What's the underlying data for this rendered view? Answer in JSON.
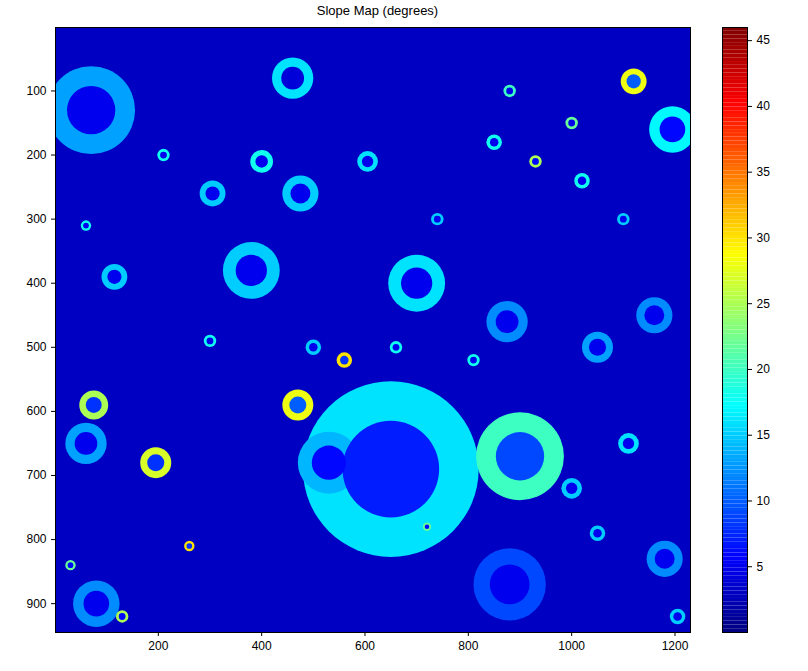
{
  "chart_data": {
    "type": "heatmap",
    "title": "Slope Map (degrees)",
    "xlim": [
      1,
      1230
    ],
    "ylim": [
      1,
      945
    ],
    "xticks": [
      200,
      400,
      600,
      800,
      1000,
      1200
    ],
    "yticks": [
      100,
      200,
      300,
      400,
      500,
      600,
      700,
      800,
      900
    ],
    "colorbar": {
      "range": [
        0,
        46
      ],
      "ticks": [
        5,
        10,
        15,
        20,
        25,
        30,
        35,
        40,
        45
      ]
    },
    "background": 3,
    "craters": [
      {
        "x": 650,
        "y": 690,
        "r": 170,
        "rim": 16,
        "floor": 7
      },
      {
        "x": 530,
        "y": 680,
        "r": 60,
        "rim": 14,
        "floor": 6
      },
      {
        "x": 900,
        "y": 670,
        "r": 85,
        "rim": 20,
        "floor": 9
      },
      {
        "x": 880,
        "y": 870,
        "r": 70,
        "rim": 9,
        "floor": 5
      },
      {
        "x": 70,
        "y": 130,
        "r": 85,
        "rim": 13,
        "floor": 5
      },
      {
        "x": 1195,
        "y": 160,
        "r": 45,
        "rim": 17,
        "floor": 6
      },
      {
        "x": 460,
        "y": 80,
        "r": 40,
        "rim": 16,
        "floor": 4
      },
      {
        "x": 380,
        "y": 380,
        "r": 55,
        "rim": 15,
        "floor": 5
      },
      {
        "x": 700,
        "y": 400,
        "r": 55,
        "rim": 16,
        "floor": 5
      },
      {
        "x": 475,
        "y": 260,
        "r": 35,
        "rim": 15,
        "floor": 5
      },
      {
        "x": 875,
        "y": 460,
        "r": 40,
        "rim": 12,
        "floor": 5
      },
      {
        "x": 60,
        "y": 650,
        "r": 40,
        "rim": 13,
        "floor": 5
      },
      {
        "x": 80,
        "y": 900,
        "r": 45,
        "rim": 12,
        "floor": 5
      },
      {
        "x": 1160,
        "y": 450,
        "r": 35,
        "rim": 12,
        "floor": 5
      },
      {
        "x": 1180,
        "y": 830,
        "r": 35,
        "rim": 12,
        "floor": 5
      },
      {
        "x": 470,
        "y": 590,
        "r": 30,
        "rim": 28,
        "floor": 10
      },
      {
        "x": 195,
        "y": 680,
        "r": 30,
        "rim": 27,
        "floor": 8
      },
      {
        "x": 75,
        "y": 590,
        "r": 28,
        "rim": 25,
        "floor": 8
      },
      {
        "x": 1120,
        "y": 85,
        "r": 25,
        "rim": 28,
        "floor": 10
      },
      {
        "x": 400,
        "y": 210,
        "r": 22,
        "rim": 18,
        "floor": 5
      },
      {
        "x": 305,
        "y": 260,
        "r": 25,
        "rim": 15,
        "floor": 5
      },
      {
        "x": 115,
        "y": 390,
        "r": 25,
        "rim": 15,
        "floor": 5
      },
      {
        "x": 1050,
        "y": 500,
        "r": 30,
        "rim": 13,
        "floor": 5
      },
      {
        "x": 1110,
        "y": 650,
        "r": 20,
        "rim": 16,
        "floor": 5
      },
      {
        "x": 1000,
        "y": 720,
        "r": 20,
        "rim": 15,
        "floor": 5
      },
      {
        "x": 605,
        "y": 210,
        "r": 20,
        "rim": 16,
        "floor": 5
      },
      {
        "x": 560,
        "y": 520,
        "r": 15,
        "rim": 30,
        "floor": 8
      },
      {
        "x": 300,
        "y": 490,
        "r": 12,
        "rim": 18,
        "floor": 5
      },
      {
        "x": 260,
        "y": 810,
        "r": 10,
        "rim": 30,
        "floor": 8
      },
      {
        "x": 130,
        "y": 920,
        "r": 12,
        "rim": 25,
        "floor": 6
      },
      {
        "x": 30,
        "y": 840,
        "r": 10,
        "rim": 22,
        "floor": 6
      },
      {
        "x": 850,
        "y": 180,
        "r": 15,
        "rim": 18,
        "floor": 5
      },
      {
        "x": 930,
        "y": 210,
        "r": 12,
        "rim": 25,
        "floor": 6
      },
      {
        "x": 880,
        "y": 100,
        "r": 12,
        "rim": 20,
        "floor": 5
      },
      {
        "x": 1000,
        "y": 150,
        "r": 12,
        "rim": 22,
        "floor": 5
      },
      {
        "x": 1020,
        "y": 240,
        "r": 15,
        "rim": 18,
        "floor": 5
      },
      {
        "x": 210,
        "y": 200,
        "r": 12,
        "rim": 18,
        "floor": 5
      },
      {
        "x": 60,
        "y": 310,
        "r": 10,
        "rim": 18,
        "floor": 5
      },
      {
        "x": 1050,
        "y": 790,
        "r": 15,
        "rim": 15,
        "floor": 5
      },
      {
        "x": 1205,
        "y": 920,
        "r": 15,
        "rim": 15,
        "floor": 5
      },
      {
        "x": 810,
        "y": 520,
        "r": 12,
        "rim": 18,
        "floor": 5
      },
      {
        "x": 660,
        "y": 500,
        "r": 12,
        "rim": 18,
        "floor": 5
      },
      {
        "x": 500,
        "y": 500,
        "r": 15,
        "rim": 15,
        "floor": 5
      },
      {
        "x": 740,
        "y": 300,
        "r": 12,
        "rim": 15,
        "floor": 5
      },
      {
        "x": 1100,
        "y": 300,
        "r": 12,
        "rim": 15,
        "floor": 5
      },
      {
        "x": 720,
        "y": 780,
        "r": 8,
        "rim": 22,
        "floor": 6
      }
    ]
  }
}
